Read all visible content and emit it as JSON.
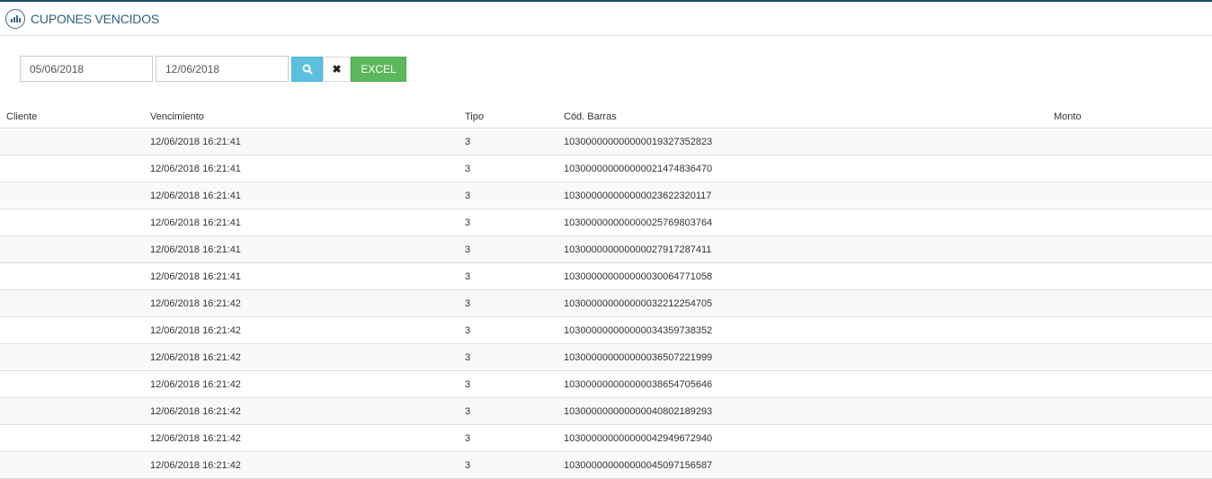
{
  "header": {
    "title": "CUPONES VENCIDOS",
    "icon": "bar-chart-circle-icon"
  },
  "filters": {
    "date_from": "05/06/2018",
    "date_to": "12/06/2018",
    "search_icon": "search-icon",
    "clear_icon": "close-icon",
    "excel_label": "EXCEL"
  },
  "colors": {
    "accent": "#2f5f80",
    "search": "#5bc0de",
    "excel": "#5cb85c"
  },
  "table": {
    "columns": [
      "Cliente",
      "Vencimiento",
      "Tipo",
      "Cód. Barras",
      "Monto"
    ],
    "rows": [
      {
        "cliente": "",
        "vencimiento": "12/06/2018 16:21:41",
        "tipo": "3",
        "codigo": "103000000000000019327352823",
        "monto": ""
      },
      {
        "cliente": "",
        "vencimiento": "12/06/2018 16:21:41",
        "tipo": "3",
        "codigo": "103000000000000021474836470",
        "monto": ""
      },
      {
        "cliente": "",
        "vencimiento": "12/06/2018 16:21:41",
        "tipo": "3",
        "codigo": "103000000000000023622320117",
        "monto": ""
      },
      {
        "cliente": "",
        "vencimiento": "12/06/2018 16:21:41",
        "tipo": "3",
        "codigo": "103000000000000025769803764",
        "monto": ""
      },
      {
        "cliente": "",
        "vencimiento": "12/06/2018 16:21:41",
        "tipo": "3",
        "codigo": "103000000000000027917287411",
        "monto": ""
      },
      {
        "cliente": "",
        "vencimiento": "12/06/2018 16:21:41",
        "tipo": "3",
        "codigo": "103000000000000030064771058",
        "monto": ""
      },
      {
        "cliente": "",
        "vencimiento": "12/06/2018 16:21:42",
        "tipo": "3",
        "codigo": "103000000000000032212254705",
        "monto": ""
      },
      {
        "cliente": "",
        "vencimiento": "12/06/2018 16:21:42",
        "tipo": "3",
        "codigo": "103000000000000034359738352",
        "monto": ""
      },
      {
        "cliente": "",
        "vencimiento": "12/06/2018 16:21:42",
        "tipo": "3",
        "codigo": "103000000000000036507221999",
        "monto": ""
      },
      {
        "cliente": "",
        "vencimiento": "12/06/2018 16:21:42",
        "tipo": "3",
        "codigo": "103000000000000038654705646",
        "monto": ""
      },
      {
        "cliente": "",
        "vencimiento": "12/06/2018 16:21:42",
        "tipo": "3",
        "codigo": "103000000000000040802189293",
        "monto": ""
      },
      {
        "cliente": "",
        "vencimiento": "12/06/2018 16:21:42",
        "tipo": "3",
        "codigo": "103000000000000042949672940",
        "monto": ""
      },
      {
        "cliente": "",
        "vencimiento": "12/06/2018 16:21:42",
        "tipo": "3",
        "codigo": "103000000000000045097156587",
        "monto": ""
      }
    ]
  }
}
